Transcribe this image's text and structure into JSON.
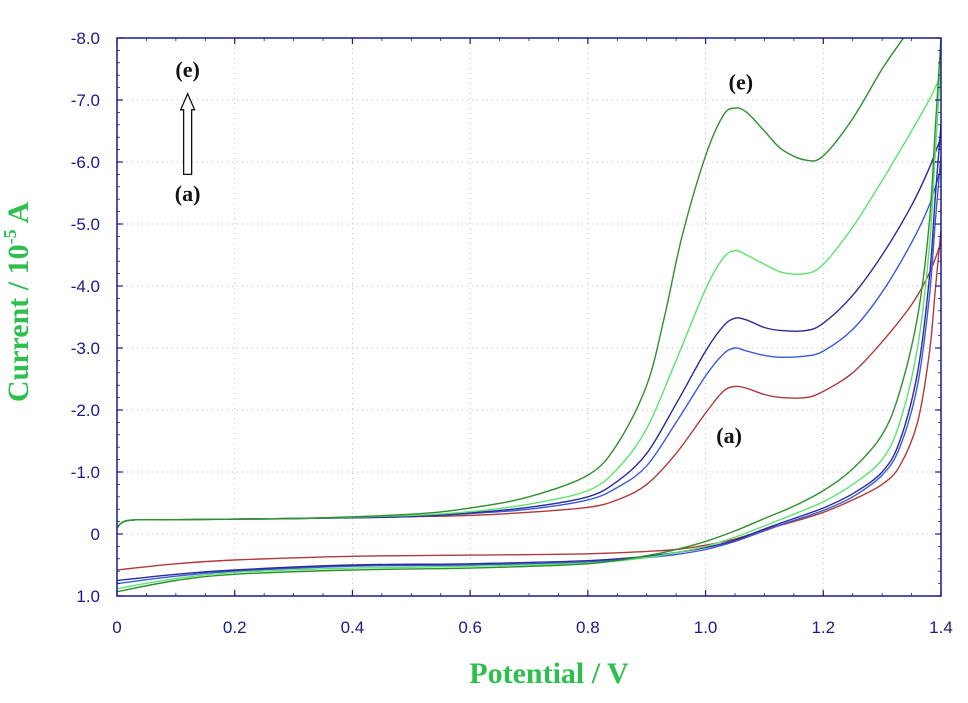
{
  "chart_data": {
    "type": "line",
    "xlabel": "Potential / V",
    "ylabel_main": "Current / 10",
    "ylabel_exp": "-5",
    "ylabel_unit": " A",
    "xlim": [
      0,
      1.4
    ],
    "ylim": [
      1.0,
      -8.0
    ],
    "y_inverted": true,
    "x_ticks": [
      "0",
      "0.2",
      "0.4",
      "0.6",
      "0.8",
      "1.0",
      "1.2",
      "1.4"
    ],
    "x_tick_values": [
      0,
      0.2,
      0.4,
      0.6,
      0.8,
      1.0,
      1.2,
      1.4
    ],
    "y_ticks": [
      "-8.0",
      "-7.0",
      "-6.0",
      "-5.0",
      "-4.0",
      "-3.0",
      "-2.0",
      "-1.0",
      "0",
      "1.0"
    ],
    "y_tick_values": [
      -8,
      -7,
      -6,
      -5,
      -4,
      -3,
      -2,
      -1,
      0,
      1
    ],
    "grid": "dotted",
    "annotations": [
      {
        "text": "(e)",
        "x": 0.12,
        "y": -7.5
      },
      {
        "text": "(a)",
        "x": 0.12,
        "y": -5.5
      },
      {
        "text": "(e)",
        "x": 1.06,
        "y": -7.3
      },
      {
        "text": "(a)",
        "x": 1.04,
        "y": -1.6
      }
    ],
    "arrow": {
      "x": 0.12,
      "from_y": -5.8,
      "to_y": -7.1
    },
    "series": [
      {
        "color": "#b03a3a",
        "forward": [
          [
            0.0,
            -0.1
          ],
          [
            0.02,
            -0.22
          ],
          [
            0.1,
            -0.23
          ],
          [
            0.3,
            -0.25
          ],
          [
            0.5,
            -0.28
          ],
          [
            0.6,
            -0.3
          ],
          [
            0.7,
            -0.35
          ],
          [
            0.8,
            -0.43
          ],
          [
            0.85,
            -0.55
          ],
          [
            0.9,
            -0.8
          ],
          [
            0.95,
            -1.3
          ],
          [
            1.0,
            -1.95
          ],
          [
            1.03,
            -2.3
          ],
          [
            1.05,
            -2.38
          ],
          [
            1.07,
            -2.35
          ],
          [
            1.1,
            -2.25
          ],
          [
            1.13,
            -2.2
          ],
          [
            1.17,
            -2.2
          ],
          [
            1.2,
            -2.3
          ],
          [
            1.25,
            -2.6
          ],
          [
            1.3,
            -3.1
          ],
          [
            1.35,
            -3.7
          ],
          [
            1.38,
            -4.2
          ],
          [
            1.4,
            -4.7
          ]
        ],
        "reverse": [
          [
            1.4,
            -4.9
          ],
          [
            1.39,
            -3.9
          ],
          [
            1.38,
            -2.9
          ],
          [
            1.36,
            -1.8
          ],
          [
            1.33,
            -1.1
          ],
          [
            1.3,
            -0.8
          ],
          [
            1.25,
            -0.55
          ],
          [
            1.2,
            -0.35
          ],
          [
            1.15,
            -0.2
          ],
          [
            1.1,
            -0.07
          ],
          [
            1.05,
            0.08
          ],
          [
            1.0,
            0.18
          ],
          [
            0.95,
            0.25
          ],
          [
            0.9,
            0.28
          ],
          [
            0.8,
            0.32
          ],
          [
            0.6,
            0.34
          ],
          [
            0.4,
            0.36
          ],
          [
            0.2,
            0.42
          ],
          [
            0.1,
            0.48
          ],
          [
            0.0,
            0.58
          ]
        ]
      },
      {
        "color": "#3a5ad8",
        "forward": [
          [
            0.0,
            -0.1
          ],
          [
            0.02,
            -0.22
          ],
          [
            0.1,
            -0.23
          ],
          [
            0.3,
            -0.25
          ],
          [
            0.5,
            -0.28
          ],
          [
            0.6,
            -0.33
          ],
          [
            0.7,
            -0.4
          ],
          [
            0.8,
            -0.55
          ],
          [
            0.85,
            -0.75
          ],
          [
            0.9,
            -1.1
          ],
          [
            0.95,
            -1.8
          ],
          [
            1.0,
            -2.55
          ],
          [
            1.03,
            -2.9
          ],
          [
            1.05,
            -3.0
          ],
          [
            1.07,
            -2.95
          ],
          [
            1.1,
            -2.88
          ],
          [
            1.13,
            -2.85
          ],
          [
            1.17,
            -2.87
          ],
          [
            1.2,
            -2.95
          ],
          [
            1.25,
            -3.3
          ],
          [
            1.3,
            -3.9
          ],
          [
            1.35,
            -4.7
          ],
          [
            1.38,
            -5.3
          ],
          [
            1.4,
            -5.9
          ]
        ],
        "reverse": [
          [
            1.4,
            -6.1
          ],
          [
            1.39,
            -5.0
          ],
          [
            1.38,
            -3.8
          ],
          [
            1.36,
            -2.4
          ],
          [
            1.33,
            -1.4
          ],
          [
            1.3,
            -0.95
          ],
          [
            1.25,
            -0.6
          ],
          [
            1.2,
            -0.38
          ],
          [
            1.15,
            -0.22
          ],
          [
            1.1,
            -0.05
          ],
          [
            1.05,
            0.12
          ],
          [
            1.0,
            0.25
          ],
          [
            0.95,
            0.33
          ],
          [
            0.9,
            0.38
          ],
          [
            0.8,
            0.45
          ],
          [
            0.6,
            0.5
          ],
          [
            0.4,
            0.52
          ],
          [
            0.2,
            0.6
          ],
          [
            0.1,
            0.68
          ],
          [
            0.0,
            0.8
          ]
        ]
      },
      {
        "color": "#2a2a9a",
        "forward": [
          [
            0.0,
            -0.1
          ],
          [
            0.02,
            -0.22
          ],
          [
            0.1,
            -0.23
          ],
          [
            0.3,
            -0.25
          ],
          [
            0.5,
            -0.28
          ],
          [
            0.6,
            -0.34
          ],
          [
            0.7,
            -0.43
          ],
          [
            0.8,
            -0.6
          ],
          [
            0.85,
            -0.85
          ],
          [
            0.9,
            -1.3
          ],
          [
            0.95,
            -2.1
          ],
          [
            1.0,
            -2.95
          ],
          [
            1.03,
            -3.35
          ],
          [
            1.05,
            -3.48
          ],
          [
            1.07,
            -3.45
          ],
          [
            1.1,
            -3.33
          ],
          [
            1.13,
            -3.28
          ],
          [
            1.17,
            -3.28
          ],
          [
            1.2,
            -3.4
          ],
          [
            1.25,
            -3.85
          ],
          [
            1.3,
            -4.5
          ],
          [
            1.35,
            -5.3
          ],
          [
            1.38,
            -5.9
          ],
          [
            1.4,
            -6.4
          ]
        ],
        "reverse": [
          [
            1.4,
            -6.6
          ],
          [
            1.39,
            -5.4
          ],
          [
            1.38,
            -4.1
          ],
          [
            1.36,
            -2.6
          ],
          [
            1.33,
            -1.5
          ],
          [
            1.3,
            -1.0
          ],
          [
            1.25,
            -0.65
          ],
          [
            1.2,
            -0.42
          ],
          [
            1.15,
            -0.25
          ],
          [
            1.1,
            -0.08
          ],
          [
            1.05,
            0.1
          ],
          [
            1.0,
            0.22
          ],
          [
            0.95,
            0.3
          ],
          [
            0.9,
            0.36
          ],
          [
            0.8,
            0.43
          ],
          [
            0.6,
            0.48
          ],
          [
            0.4,
            0.5
          ],
          [
            0.2,
            0.58
          ],
          [
            0.1,
            0.65
          ],
          [
            0.0,
            0.75
          ]
        ]
      },
      {
        "color": "#5de36d",
        "forward": [
          [
            0.0,
            -0.1
          ],
          [
            0.02,
            -0.22
          ],
          [
            0.1,
            -0.23
          ],
          [
            0.3,
            -0.25
          ],
          [
            0.5,
            -0.3
          ],
          [
            0.6,
            -0.36
          ],
          [
            0.7,
            -0.48
          ],
          [
            0.8,
            -0.7
          ],
          [
            0.85,
            -1.05
          ],
          [
            0.9,
            -1.7
          ],
          [
            0.95,
            -2.8
          ],
          [
            1.0,
            -3.95
          ],
          [
            1.03,
            -4.45
          ],
          [
            1.05,
            -4.57
          ],
          [
            1.07,
            -4.5
          ],
          [
            1.1,
            -4.35
          ],
          [
            1.13,
            -4.22
          ],
          [
            1.17,
            -4.2
          ],
          [
            1.2,
            -4.35
          ],
          [
            1.25,
            -4.95
          ],
          [
            1.3,
            -5.7
          ],
          [
            1.35,
            -6.5
          ],
          [
            1.38,
            -7.0
          ],
          [
            1.4,
            -7.4
          ]
        ],
        "reverse": [
          [
            1.4,
            -7.6
          ],
          [
            1.39,
            -6.1
          ],
          [
            1.38,
            -4.6
          ],
          [
            1.36,
            -3.0
          ],
          [
            1.33,
            -1.8
          ],
          [
            1.3,
            -1.2
          ],
          [
            1.25,
            -0.8
          ],
          [
            1.2,
            -0.52
          ],
          [
            1.15,
            -0.32
          ],
          [
            1.1,
            -0.13
          ],
          [
            1.05,
            0.05
          ],
          [
            1.0,
            0.2
          ],
          [
            0.95,
            0.3
          ],
          [
            0.9,
            0.38
          ],
          [
            0.8,
            0.47
          ],
          [
            0.6,
            0.52
          ],
          [
            0.4,
            0.55
          ],
          [
            0.2,
            0.62
          ],
          [
            0.1,
            0.72
          ],
          [
            0.0,
            0.88
          ]
        ]
      },
      {
        "color": "#2f8f2f",
        "forward": [
          [
            0.0,
            -0.1
          ],
          [
            0.02,
            -0.22
          ],
          [
            0.1,
            -0.23
          ],
          [
            0.3,
            -0.25
          ],
          [
            0.5,
            -0.32
          ],
          [
            0.6,
            -0.42
          ],
          [
            0.7,
            -0.6
          ],
          [
            0.8,
            -0.95
          ],
          [
            0.85,
            -1.45
          ],
          [
            0.9,
            -2.4
          ],
          [
            0.93,
            -3.5
          ],
          [
            0.96,
            -4.8
          ],
          [
            1.0,
            -6.1
          ],
          [
            1.03,
            -6.75
          ],
          [
            1.05,
            -6.87
          ],
          [
            1.07,
            -6.8
          ],
          [
            1.1,
            -6.5
          ],
          [
            1.13,
            -6.2
          ],
          [
            1.17,
            -6.03
          ],
          [
            1.2,
            -6.1
          ],
          [
            1.25,
            -6.7
          ],
          [
            1.3,
            -7.5
          ],
          [
            1.34,
            -8.05
          ]
        ],
        "reverse": [
          [
            1.4,
            -8.0
          ],
          [
            1.39,
            -6.5
          ],
          [
            1.38,
            -5.0
          ],
          [
            1.36,
            -3.5
          ],
          [
            1.33,
            -2.3
          ],
          [
            1.3,
            -1.6
          ],
          [
            1.25,
            -1.05
          ],
          [
            1.2,
            -0.7
          ],
          [
            1.15,
            -0.45
          ],
          [
            1.1,
            -0.25
          ],
          [
            1.05,
            -0.05
          ],
          [
            1.0,
            0.12
          ],
          [
            0.95,
            0.25
          ],
          [
            0.9,
            0.35
          ],
          [
            0.8,
            0.48
          ],
          [
            0.6,
            0.55
          ],
          [
            0.4,
            0.58
          ],
          [
            0.2,
            0.65
          ],
          [
            0.1,
            0.75
          ],
          [
            0.0,
            0.93
          ]
        ]
      }
    ]
  }
}
